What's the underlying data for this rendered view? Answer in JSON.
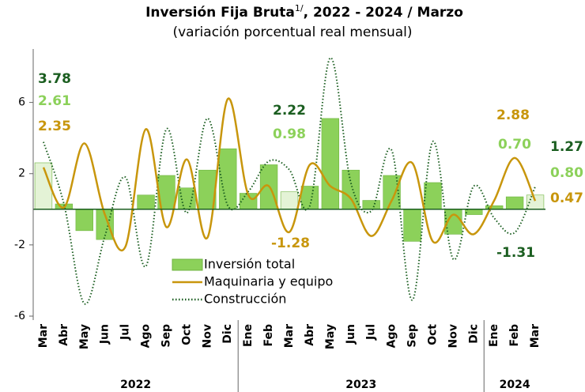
{
  "chart_data": {
    "type": "bar-line",
    "title": "Inversión Fija Bruta",
    "title_note": "1/",
    "title_rest": ", 2022 - 2024 / Marzo",
    "subtitle": "(variación porcentual real mensual)",
    "categories": [
      "Mar",
      "Abr",
      "May",
      "Jun",
      "Jul",
      "Ago",
      "Sep",
      "Oct",
      "Nov",
      "Dic",
      "Ene",
      "Feb",
      "Mar",
      "Abr",
      "May",
      "Jun",
      "Jul",
      "Ago",
      "Sep",
      "Oct",
      "Nov",
      "Dic",
      "Ene",
      "Feb",
      "Mar"
    ],
    "year_groups": [
      {
        "label": "2022",
        "start": 0,
        "end": 9
      },
      {
        "label": "2023",
        "start": 10,
        "end": 21
      },
      {
        "label": "2024",
        "start": 22,
        "end": 24
      }
    ],
    "ylim": [
      -6,
      9
    ],
    "yticks": [
      -6,
      -2,
      2,
      6
    ],
    "series": [
      {
        "name": "Inversión total",
        "kind": "bar",
        "color": "#8cd15a",
        "highlight_color": "#e4f3d6",
        "highlight": [
          0,
          12,
          24
        ],
        "label_color": "#8cd15a",
        "values": [
          2.61,
          0.3,
          -1.2,
          -1.7,
          0.0,
          0.8,
          1.9,
          1.2,
          2.2,
          3.4,
          0.9,
          2.5,
          0.98,
          1.3,
          5.1,
          2.2,
          0.5,
          1.9,
          -1.8,
          1.5,
          -1.4,
          -0.3,
          0.2,
          0.7,
          0.8
        ],
        "value_labels": [
          "2.61",
          null,
          null,
          null,
          null,
          null,
          null,
          null,
          null,
          null,
          null,
          null,
          "0.98",
          null,
          null,
          null,
          null,
          null,
          null,
          null,
          null,
          null,
          null,
          "0.70",
          "0.80"
        ]
      },
      {
        "name": "Maquinaria y equipo",
        "kind": "line",
        "color": "#c8960c",
        "dash": false,
        "values": [
          2.35,
          0.1,
          3.7,
          -0.3,
          -2.1,
          4.5,
          -1.0,
          2.8,
          -1.6,
          6.2,
          0.8,
          1.3,
          -1.28,
          2.5,
          1.3,
          0.6,
          -1.5,
          0.5,
          2.6,
          -1.8,
          -0.3,
          -1.4,
          0.5,
          2.88,
          0.47
        ],
        "value_labels": [
          "2.35",
          null,
          null,
          null,
          null,
          null,
          null,
          null,
          null,
          null,
          null,
          null,
          "-1.28",
          null,
          null,
          null,
          null,
          null,
          null,
          null,
          null,
          null,
          null,
          "2.88",
          "0.47"
        ]
      },
      {
        "name": "Construcción",
        "kind": "line",
        "color": "#1b5e20",
        "dash": true,
        "values": [
          3.78,
          0.3,
          -5.3,
          -1.5,
          1.8,
          -3.2,
          4.5,
          -0.2,
          5.1,
          0.2,
          1.0,
          2.7,
          2.22,
          0.2,
          8.5,
          1.5,
          -0.1,
          3.3,
          -5.1,
          3.8,
          -2.8,
          1.3,
          -0.5,
          -1.31,
          1.27
        ],
        "value_labels": [
          "3.78",
          null,
          null,
          null,
          null,
          null,
          null,
          null,
          null,
          null,
          null,
          null,
          "2.22",
          null,
          null,
          null,
          null,
          null,
          null,
          null,
          null,
          null,
          null,
          "-1.31",
          "1.27"
        ]
      }
    ]
  }
}
